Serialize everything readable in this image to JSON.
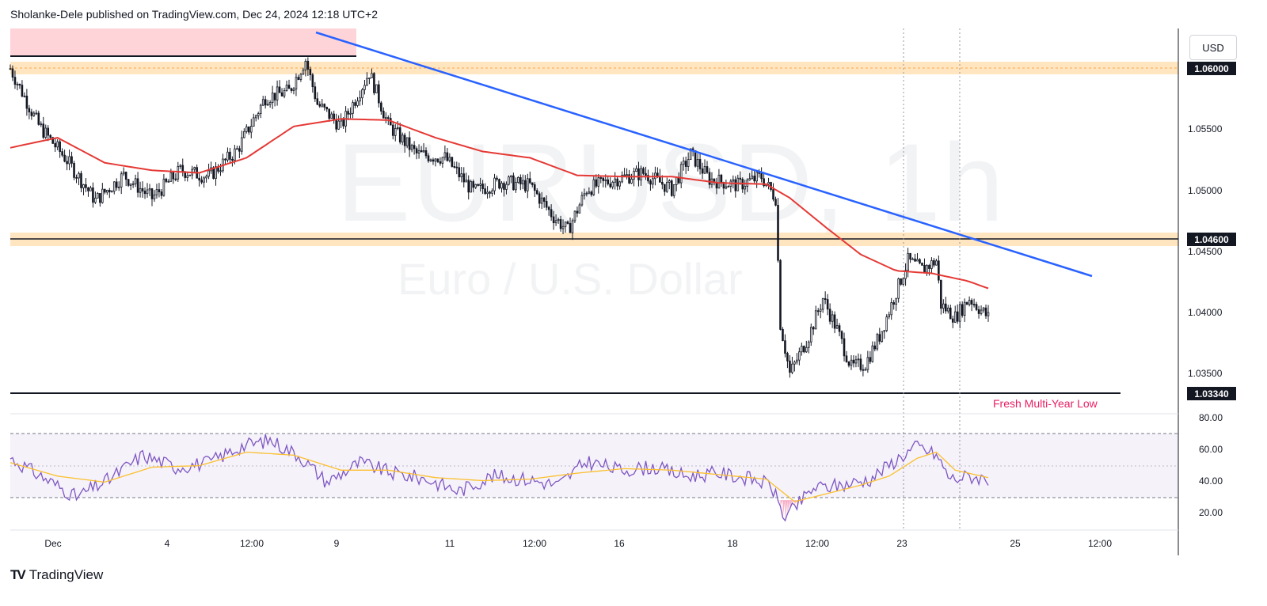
{
  "header": {
    "published_text": "Sholanke-Dele published on TradingView.com, Dec 24, 2024 12:18 UTC+2"
  },
  "watermark": {
    "symbol": "EURUSD, 1h",
    "name": "Euro / U.S. Dollar"
  },
  "currency": "USD",
  "footer": {
    "brand": "TradingView",
    "logo_icon": "tradingview-logo-icon"
  },
  "colors": {
    "trendline": "#2962ff",
    "ma": "#e53935",
    "rsi": "#7e57c2",
    "rsi_ma": "#fbc02d",
    "zone_orange": "#ffe0b2",
    "zone_red": "#ffcdd2",
    "annotation": "#e91e63"
  },
  "annotation": "Fresh Multi-Year Low",
  "chart_data": [
    {
      "type": "candlestick",
      "symbol": "EURUSD",
      "timeframe": "1h",
      "ylim": [
        1.032,
        1.0625
      ],
      "y_ticks": [
        "1.05500",
        "1.05000",
        "1.04500",
        "1.04000",
        "1.03500"
      ],
      "price_tags": [
        "1.06000",
        "1.04600",
        "1.03340"
      ],
      "x_tick_labels": [
        "Dec",
        "4",
        "12:00",
        "9",
        "11",
        "12:00",
        "16",
        "18",
        "12:00",
        "23",
        "25",
        "12:00"
      ],
      "horizontal_levels": [
        {
          "price": 1.06,
          "style": "orange zone"
        },
        {
          "price": 1.046,
          "style": "orange zone"
        },
        {
          "price": 1.0334,
          "style": "black line"
        },
        {
          "price": 1.061,
          "style": "black line"
        }
      ],
      "supply_zone": {
        "from": 1.061,
        "to": 1.062
      },
      "trendline": {
        "from": 1.0617,
        "to": 1.043
      },
      "anchors": [
        {
          "x": 0,
          "y": 1.0593
        },
        {
          "x": 12,
          "y": 1.0548
        },
        {
          "x": 24,
          "y": 1.052
        },
        {
          "x": 36,
          "y": 1.0488
        },
        {
          "x": 48,
          "y": 1.0508
        },
        {
          "x": 60,
          "y": 1.049
        },
        {
          "x": 72,
          "y": 1.0512
        },
        {
          "x": 84,
          "y": 1.0507
        },
        {
          "x": 96,
          "y": 1.0528
        },
        {
          "x": 108,
          "y": 1.057
        },
        {
          "x": 118,
          "y": 1.0575
        },
        {
          "x": 125,
          "y": 1.06
        },
        {
          "x": 130,
          "y": 1.0565
        },
        {
          "x": 140,
          "y": 1.0547
        },
        {
          "x": 152,
          "y": 1.059
        },
        {
          "x": 160,
          "y": 1.0548
        },
        {
          "x": 172,
          "y": 1.0525
        },
        {
          "x": 184,
          "y": 1.0522
        },
        {
          "x": 196,
          "y": 1.0495
        },
        {
          "x": 208,
          "y": 1.0503
        },
        {
          "x": 220,
          "y": 1.05
        },
        {
          "x": 230,
          "y": 1.0475
        },
        {
          "x": 236,
          "y": 1.0464
        },
        {
          "x": 244,
          "y": 1.0497
        },
        {
          "x": 256,
          "y": 1.0505
        },
        {
          "x": 268,
          "y": 1.051
        },
        {
          "x": 280,
          "y": 1.0497
        },
        {
          "x": 288,
          "y": 1.0525
        },
        {
          "x": 296,
          "y": 1.0505
        },
        {
          "x": 308,
          "y": 1.05
        },
        {
          "x": 318,
          "y": 1.0507
        },
        {
          "x": 324,
          "y": 1.049
        },
        {
          "x": 326,
          "y": 1.039
        },
        {
          "x": 330,
          "y": 1.035
        },
        {
          "x": 338,
          "y": 1.038
        },
        {
          "x": 344,
          "y": 1.041
        },
        {
          "x": 350,
          "y": 1.0385
        },
        {
          "x": 356,
          "y": 1.0355
        },
        {
          "x": 362,
          "y": 1.0358
        },
        {
          "x": 368,
          "y": 1.038
        },
        {
          "x": 374,
          "y": 1.041
        },
        {
          "x": 380,
          "y": 1.044
        },
        {
          "x": 386,
          "y": 1.0433
        },
        {
          "x": 392,
          "y": 1.044
        },
        {
          "x": 394,
          "y": 1.0405
        },
        {
          "x": 400,
          "y": 1.0395
        },
        {
          "x": 406,
          "y": 1.041
        },
        {
          "x": 414,
          "y": 1.0395
        }
      ],
      "moving_average": [
        {
          "x": 0,
          "y": 1.053
        },
        {
          "x": 20,
          "y": 1.0538
        },
        {
          "x": 40,
          "y": 1.0518
        },
        {
          "x": 60,
          "y": 1.0512
        },
        {
          "x": 80,
          "y": 1.051
        },
        {
          "x": 100,
          "y": 1.0522
        },
        {
          "x": 120,
          "y": 1.0547
        },
        {
          "x": 140,
          "y": 1.0553
        },
        {
          "x": 160,
          "y": 1.0552
        },
        {
          "x": 180,
          "y": 1.0538
        },
        {
          "x": 200,
          "y": 1.0527
        },
        {
          "x": 220,
          "y": 1.0522
        },
        {
          "x": 240,
          "y": 1.0508
        },
        {
          "x": 260,
          "y": 1.0507
        },
        {
          "x": 280,
          "y": 1.0507
        },
        {
          "x": 300,
          "y": 1.0502
        },
        {
          "x": 320,
          "y": 1.0501
        },
        {
          "x": 330,
          "y": 1.049
        },
        {
          "x": 345,
          "y": 1.0467
        },
        {
          "x": 360,
          "y": 1.0445
        },
        {
          "x": 375,
          "y": 1.0432
        },
        {
          "x": 390,
          "y": 1.043
        },
        {
          "x": 405,
          "y": 1.0424
        },
        {
          "x": 414,
          "y": 1.0418
        }
      ],
      "rsi": {
        "ylim": [
          10,
          85
        ],
        "y_ticks": [
          "80.00",
          "60.00",
          "40.00",
          "20.00"
        ],
        "band": [
          30,
          70
        ],
        "anchors": [
          {
            "x": 0,
            "y": 58
          },
          {
            "x": 14,
            "y": 45
          },
          {
            "x": 28,
            "y": 32
          },
          {
            "x": 42,
            "y": 44
          },
          {
            "x": 56,
            "y": 60
          },
          {
            "x": 70,
            "y": 52
          },
          {
            "x": 84,
            "y": 55
          },
          {
            "x": 98,
            "y": 66
          },
          {
            "x": 110,
            "y": 70
          },
          {
            "x": 122,
            "y": 60
          },
          {
            "x": 134,
            "y": 42
          },
          {
            "x": 148,
            "y": 55
          },
          {
            "x": 162,
            "y": 48
          },
          {
            "x": 176,
            "y": 44
          },
          {
            "x": 190,
            "y": 36
          },
          {
            "x": 204,
            "y": 46
          },
          {
            "x": 218,
            "y": 44
          },
          {
            "x": 232,
            "y": 40
          },
          {
            "x": 244,
            "y": 56
          },
          {
            "x": 258,
            "y": 50
          },
          {
            "x": 272,
            "y": 52
          },
          {
            "x": 286,
            "y": 46
          },
          {
            "x": 300,
            "y": 48
          },
          {
            "x": 314,
            "y": 44
          },
          {
            "x": 322,
            "y": 40
          },
          {
            "x": 328,
            "y": 18
          },
          {
            "x": 340,
            "y": 38
          },
          {
            "x": 352,
            "y": 40
          },
          {
            "x": 364,
            "y": 44
          },
          {
            "x": 376,
            "y": 58
          },
          {
            "x": 384,
            "y": 66
          },
          {
            "x": 392,
            "y": 60
          },
          {
            "x": 398,
            "y": 44
          },
          {
            "x": 406,
            "y": 46
          },
          {
            "x": 414,
            "y": 44
          }
        ],
        "ma_anchors": [
          {
            "x": 0,
            "y": 55
          },
          {
            "x": 20,
            "y": 46
          },
          {
            "x": 40,
            "y": 42
          },
          {
            "x": 60,
            "y": 52
          },
          {
            "x": 80,
            "y": 53
          },
          {
            "x": 100,
            "y": 62
          },
          {
            "x": 120,
            "y": 60
          },
          {
            "x": 140,
            "y": 50
          },
          {
            "x": 160,
            "y": 50
          },
          {
            "x": 180,
            "y": 45
          },
          {
            "x": 200,
            "y": 43
          },
          {
            "x": 220,
            "y": 44
          },
          {
            "x": 240,
            "y": 48
          },
          {
            "x": 260,
            "y": 51
          },
          {
            "x": 280,
            "y": 50
          },
          {
            "x": 300,
            "y": 47
          },
          {
            "x": 320,
            "y": 44
          },
          {
            "x": 332,
            "y": 29
          },
          {
            "x": 345,
            "y": 34
          },
          {
            "x": 360,
            "y": 40
          },
          {
            "x": 372,
            "y": 46
          },
          {
            "x": 384,
            "y": 58
          },
          {
            "x": 392,
            "y": 62
          },
          {
            "x": 400,
            "y": 50
          },
          {
            "x": 414,
            "y": 45
          }
        ]
      }
    }
  ]
}
